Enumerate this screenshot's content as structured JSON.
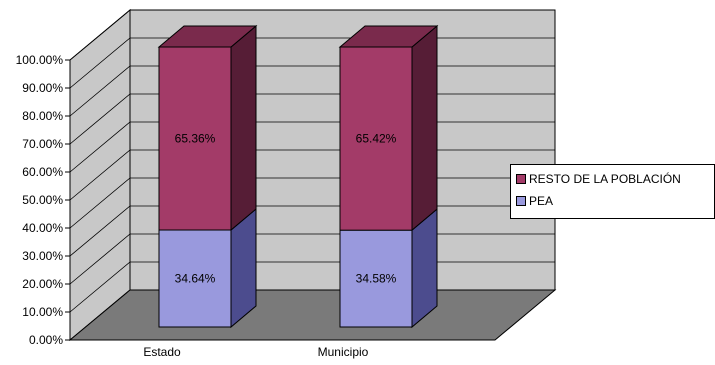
{
  "chart_data": {
    "type": "bar",
    "stacked": true,
    "percent": true,
    "three_d": true,
    "categories": [
      "Estado",
      "Municipio"
    ],
    "series": [
      {
        "name": "PEA",
        "values": [
          34.64,
          34.58
        ],
        "labels": [
          "34.64%",
          "34.58%"
        ]
      },
      {
        "name": "RESTO DE LA POBLACIÓN",
        "values": [
          65.36,
          65.42
        ],
        "labels": [
          "65.36%",
          "65.42%"
        ]
      }
    ],
    "ylim": [
      0,
      100
    ],
    "yticks": [
      "0.00%",
      "10.00%",
      "20.00%",
      "30.00%",
      "40.00%",
      "50.00%",
      "60.00%",
      "70.00%",
      "80.00%",
      "90.00%",
      "100.00%"
    ],
    "grid": true,
    "legend_position": "right",
    "legend_order": [
      "RESTO DE LA POBLACIÓN",
      "PEA"
    ],
    "colors": {
      "PEA": {
        "front": "#9999dd",
        "side": "#4c4c8e",
        "top": "#7a7ac4"
      },
      "RESTO DE LA POBLACIÓN": {
        "front": "#a33b68",
        "side": "#561d36",
        "top": "#7a2a4c"
      },
      "wall": "#c8c8c8",
      "floor": "#7a7a7a",
      "axis": "#000000"
    }
  }
}
